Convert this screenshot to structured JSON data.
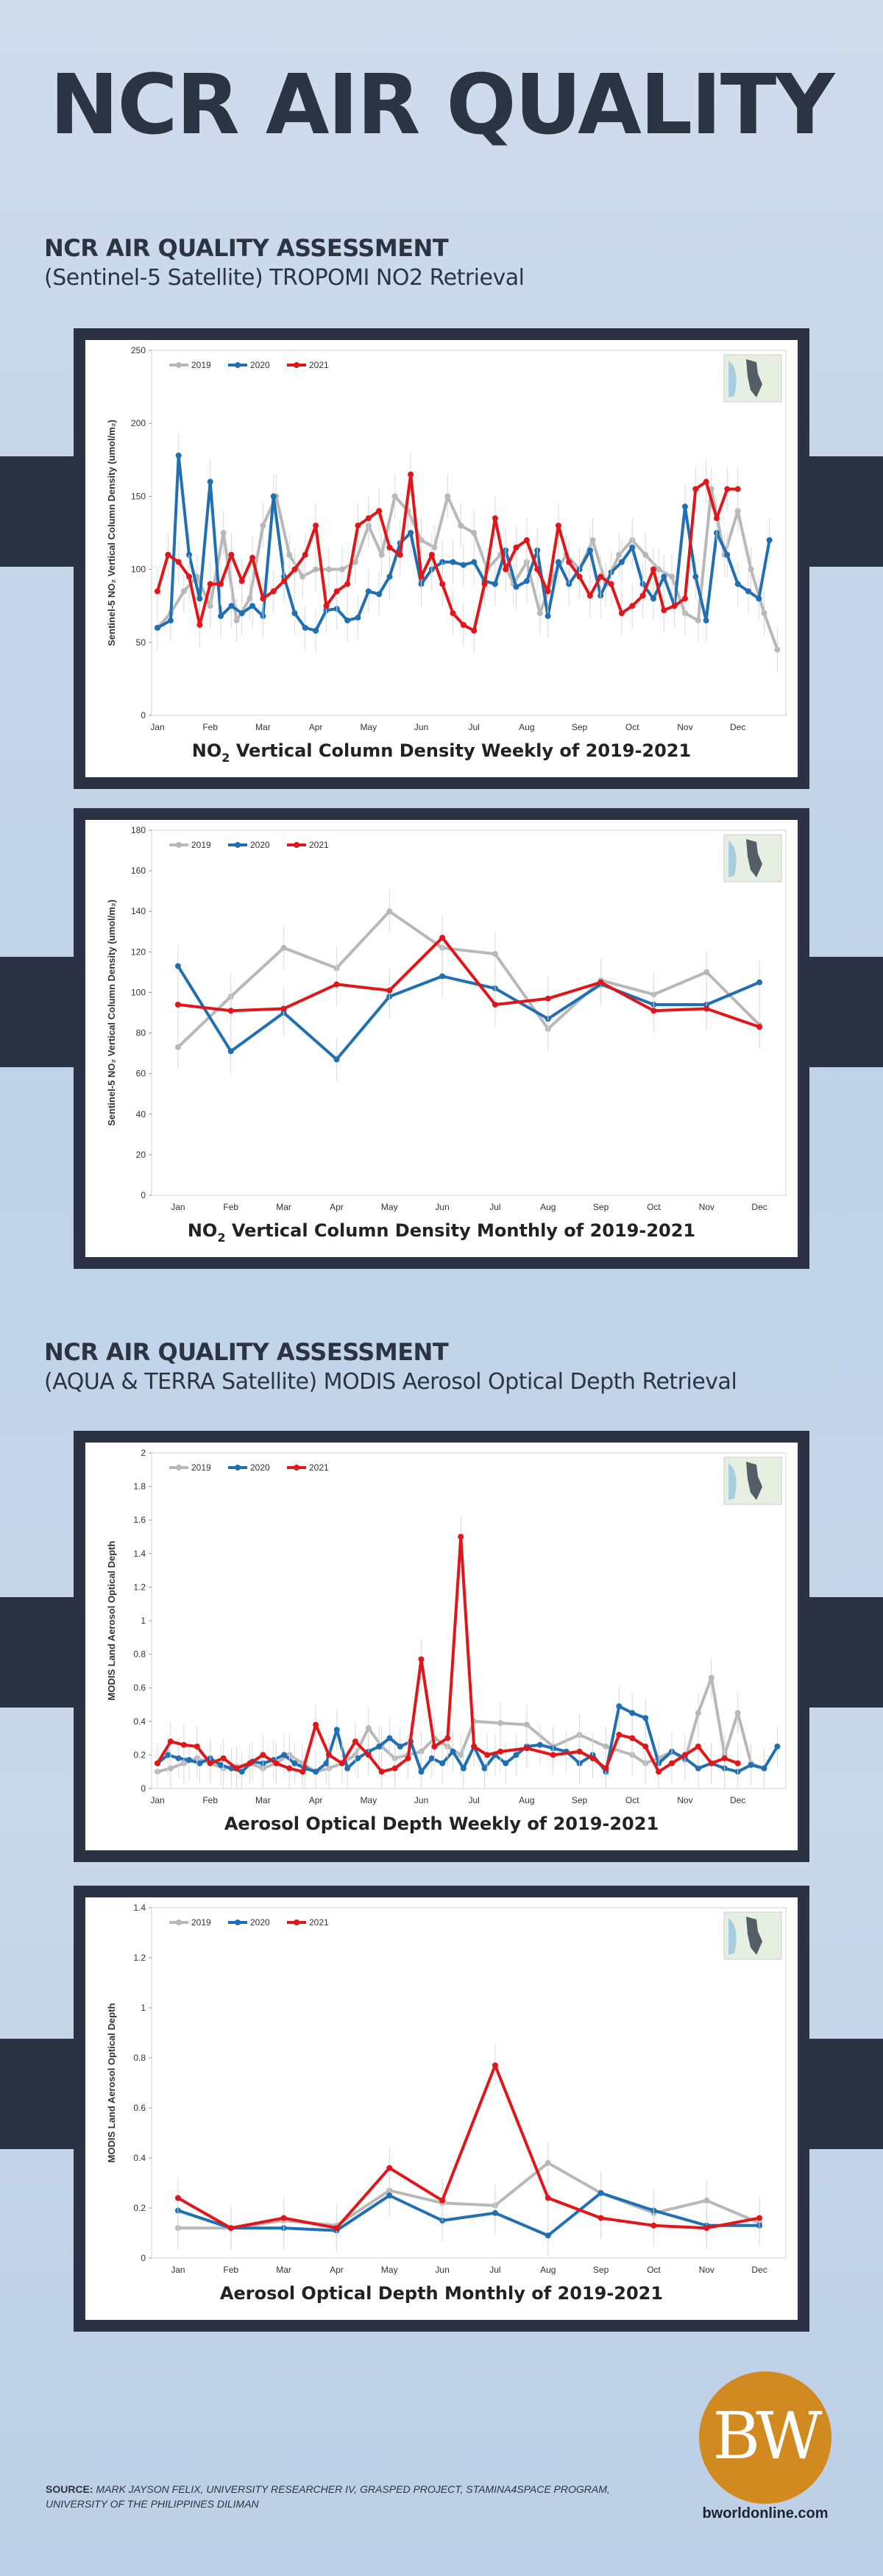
{
  "title": "NCR AIR QUALITY",
  "section1": {
    "heading": "NCR AIR QUALITY ASSESSMENT",
    "subheading": "(Sentinel-5 Satellite) TROPOMI NO2 Retrieval"
  },
  "section2": {
    "heading": "NCR AIR QUALITY ASSESSMENT",
    "subheading": "(AQUA & TERRA Satellite) MODIS Aerosol Optical Depth Retrieval"
  },
  "colors": {
    "2019": "#b8b8b8",
    "2020": "#1f6fb2",
    "2021": "#e0161b",
    "frame": "#2a3244",
    "brand": "#d08a1f"
  },
  "chart_data": [
    {
      "type": "line",
      "caption_prefix": "NO",
      "caption_sub": "2",
      "caption_suffix": " Vertical Column Density Weekly of 2019-2021",
      "ylabel": "Sentinel-5 NO₂ Vertical Column Density (umol/m₂)",
      "ylim": [
        0,
        250
      ],
      "yticks": [
        "0",
        "50",
        "100",
        "150",
        "200",
        "250"
      ],
      "month_labels": [
        "Jan",
        "Feb",
        "Mar",
        "Apr",
        "May",
        "Jun",
        "Jul",
        "Aug",
        "Sep",
        "Oct",
        "Nov",
        "Dec"
      ],
      "x_range": [
        0,
        11.8
      ],
      "grid": false,
      "legend": "top-left",
      "series": [
        {
          "name": "2019",
          "x": [
            0,
            0.25,
            0.5,
            0.75,
            1,
            1.25,
            1.5,
            1.75,
            2,
            2.25,
            2.5,
            2.75,
            3,
            3.25,
            3.5,
            3.75,
            4,
            4.25,
            4.5,
            4.75,
            5,
            5.25,
            5.5,
            5.75,
            6,
            6.25,
            6.5,
            6.75,
            7,
            7.25,
            7.5,
            7.75,
            8,
            8.25,
            8.5,
            8.75,
            9,
            9.25,
            9.5,
            9.75,
            10,
            10.25,
            10.5,
            10.75,
            11,
            11.25,
            11.5,
            11.75
          ],
          "values": [
            60,
            70,
            85,
            95,
            75,
            125,
            65,
            80,
            130,
            150,
            110,
            95,
            100,
            100,
            100,
            105,
            130,
            110,
            150,
            140,
            120,
            115,
            150,
            130,
            125,
            100,
            110,
            90,
            105,
            70,
            95,
            110,
            100,
            120,
            90,
            110,
            120,
            110,
            100,
            95,
            70,
            65,
            155,
            110,
            140,
            100,
            70,
            45
          ]
        },
        {
          "name": "2020",
          "x": [
            0,
            0.25,
            0.4,
            0.6,
            0.8,
            1,
            1.2,
            1.4,
            1.6,
            1.8,
            2,
            2.2,
            2.4,
            2.6,
            2.8,
            3,
            3.2,
            3.4,
            3.6,
            3.8,
            4,
            4.2,
            4.4,
            4.6,
            4.8,
            5,
            5.2,
            5.4,
            5.6,
            5.8,
            6,
            6.2,
            6.4,
            6.6,
            6.8,
            7,
            7.2,
            7.4,
            7.6,
            7.8,
            8,
            8.2,
            8.4,
            8.6,
            8.8,
            9,
            9.2,
            9.4,
            9.6,
            9.8,
            10,
            10.2,
            10.4,
            10.6,
            10.8,
            11,
            11.2,
            11.4,
            11.6
          ],
          "values": [
            60,
            65,
            178,
            110,
            80,
            160,
            68,
            75,
            70,
            75,
            68,
            150,
            95,
            70,
            60,
            58,
            72,
            73,
            65,
            67,
            85,
            83,
            95,
            118,
            125,
            90,
            100,
            105,
            105,
            103,
            105,
            92,
            90,
            113,
            88,
            92,
            113,
            68,
            105,
            90,
            100,
            113,
            82,
            98,
            105,
            115,
            90,
            80,
            95,
            75,
            143,
            95,
            65,
            125,
            110,
            90,
            85,
            80,
            120
          ]
        },
        {
          "name": "2021",
          "x": [
            0,
            0.2,
            0.4,
            0.6,
            0.8,
            1,
            1.2,
            1.4,
            1.6,
            1.8,
            2,
            2.2,
            2.4,
            2.6,
            2.8,
            3,
            3.2,
            3.4,
            3.6,
            3.8,
            4,
            4.2,
            4.4,
            4.6,
            4.8,
            5,
            5.2,
            5.4,
            5.6,
            5.8,
            6,
            6.2,
            6.4,
            6.6,
            6.8,
            7,
            7.2,
            7.4,
            7.6,
            7.8,
            8,
            8.2,
            8.4,
            8.6,
            8.8,
            9,
            9.2,
            9.4,
            9.6,
            9.8,
            10,
            10.2,
            10.4,
            10.6,
            10.8,
            11
          ],
          "values": [
            85,
            110,
            105,
            95,
            62,
            90,
            90,
            110,
            92,
            108,
            80,
            85,
            92,
            100,
            110,
            130,
            75,
            85,
            90,
            130,
            135,
            140,
            115,
            110,
            165,
            95,
            110,
            90,
            70,
            62,
            58,
            90,
            135,
            100,
            115,
            120,
            100,
            85,
            130,
            105,
            95,
            82,
            95,
            90,
            70,
            75,
            82,
            100,
            72,
            75,
            80,
            155,
            160,
            135,
            155,
            155
          ]
        }
      ]
    },
    {
      "type": "line",
      "caption_prefix": "NO",
      "caption_sub": "2",
      "caption_suffix": " Vertical Column Density Monthly of 2019-2021",
      "ylabel": "Sentinel-5 NO₂ Vertical Column Density (umol/m₂)",
      "ylim": [
        0,
        180
      ],
      "yticks": [
        "0",
        "20",
        "40",
        "60",
        "80",
        "100",
        "120",
        "140",
        "160",
        "180"
      ],
      "categories": [
        "Jan",
        "Feb",
        "Mar",
        "Apr",
        "May",
        "Jun",
        "Jul",
        "Aug",
        "Sep",
        "Oct",
        "Nov",
        "Dec"
      ],
      "grid": false,
      "legend": "top-left",
      "series": [
        {
          "name": "2019",
          "values": [
            73,
            98,
            122,
            112,
            140,
            122,
            119,
            82,
            106,
            99,
            110,
            84
          ]
        },
        {
          "name": "2020",
          "values": [
            113,
            71,
            90,
            67,
            98,
            108,
            102,
            87,
            104,
            94,
            94,
            105
          ]
        },
        {
          "name": "2021",
          "values": [
            94,
            91,
            92,
            104,
            101,
            127,
            94,
            97,
            105,
            91,
            92,
            83
          ]
        }
      ]
    },
    {
      "type": "line",
      "caption_prefix": "Aerosol Optical Depth Weekly of 2019-2021",
      "caption_sub": "",
      "caption_suffix": "",
      "ylabel": "MODIS Land Aerosol Optical Depth",
      "ylim": [
        0,
        2
      ],
      "yticks": [
        "0",
        "0.2",
        "0.4",
        "0.6",
        "0.8",
        "1",
        "1.2",
        "1.4",
        "1.6",
        "1.8",
        "2"
      ],
      "month_labels": [
        "Jan",
        "Feb",
        "Mar",
        "Apr",
        "May",
        "Jun",
        "Jul",
        "Aug",
        "Sep",
        "Oct",
        "Nov",
        "Dec"
      ],
      "x_range": [
        0,
        11.8
      ],
      "grid": false,
      "legend": "top-left",
      "series": [
        {
          "name": "2019",
          "x": [
            0,
            0.25,
            0.5,
            0.75,
            1,
            1.25,
            1.5,
            1.75,
            2,
            2.25,
            2.5,
            2.75,
            3,
            3.25,
            3.5,
            3.75,
            4,
            4.25,
            4.5,
            4.75,
            5,
            5.25,
            5.5,
            5.75,
            6,
            6.5,
            7,
            7.5,
            8,
            8.5,
            9,
            9.25,
            9.5,
            9.75,
            10,
            10.25,
            10.5,
            10.75,
            11,
            11.25,
            11.5
          ],
          "values": [
            0.1,
            0.12,
            0.15,
            0.18,
            0.15,
            0.12,
            0.13,
            0.15,
            0.12,
            0.15,
            0.2,
            0.15,
            0.1,
            0.12,
            0.15,
            0.2,
            0.36,
            0.25,
            0.18,
            0.2,
            0.22,
            0.3,
            0.25,
            0.2,
            0.4,
            0.39,
            0.38,
            0.25,
            0.32,
            0.25,
            0.2,
            0.15,
            0.18,
            0.22,
            0.17,
            0.45,
            0.66,
            0.2,
            0.45,
            0.15,
            0.12
          ]
        },
        {
          "name": "2020",
          "x": [
            0,
            0.2,
            0.4,
            0.6,
            0.8,
            1,
            1.2,
            1.4,
            1.6,
            1.8,
            2,
            2.2,
            2.4,
            2.6,
            2.8,
            3,
            3.2,
            3.4,
            3.6,
            3.8,
            4,
            4.2,
            4.4,
            4.6,
            4.8,
            5,
            5.2,
            5.4,
            5.6,
            5.8,
            6,
            6.2,
            6.4,
            6.6,
            6.8,
            7,
            7.25,
            7.5,
            7.75,
            8,
            8.25,
            8.5,
            8.75,
            9,
            9.25,
            9.5,
            9.75,
            10,
            10.25,
            10.5,
            10.75,
            11,
            11.25,
            11.5,
            11.75
          ],
          "values": [
            0.15,
            0.2,
            0.18,
            0.17,
            0.15,
            0.18,
            0.14,
            0.12,
            0.1,
            0.16,
            0.15,
            0.17,
            0.2,
            0.15,
            0.12,
            0.1,
            0.15,
            0.35,
            0.12,
            0.18,
            0.22,
            0.25,
            0.3,
            0.25,
            0.28,
            0.1,
            0.18,
            0.15,
            0.22,
            0.12,
            0.25,
            0.12,
            0.2,
            0.15,
            0.2,
            0.25,
            0.26,
            0.24,
            0.22,
            0.15,
            0.2,
            0.1,
            0.49,
            0.45,
            0.42,
            0.15,
            0.22,
            0.18,
            0.12,
            0.15,
            0.12,
            0.1,
            0.14,
            0.12,
            0.25
          ]
        },
        {
          "name": "2021",
          "x": [
            0,
            0.25,
            0.5,
            0.75,
            1,
            1.25,
            1.5,
            1.75,
            2,
            2.25,
            2.5,
            2.75,
            3,
            3.25,
            3.5,
            3.75,
            4,
            4.25,
            4.5,
            4.75,
            5,
            5.25,
            5.5,
            5.75,
            6,
            6.25,
            6.5,
            7,
            7.5,
            8,
            8.25,
            8.5,
            8.75,
            9,
            9.25,
            9.5,
            9.75,
            10,
            10.25,
            10.5,
            10.75,
            11
          ],
          "values": [
            0.15,
            0.28,
            0.26,
            0.25,
            0.15,
            0.18,
            0.12,
            0.15,
            0.2,
            0.15,
            0.12,
            0.1,
            0.38,
            0.2,
            0.15,
            0.28,
            0.2,
            0.1,
            0.12,
            0.18,
            0.77,
            0.25,
            0.3,
            1.5,
            0.25,
            0.2,
            0.22,
            0.24,
            0.2,
            0.22,
            0.18,
            0.12,
            0.32,
            0.3,
            0.25,
            0.1,
            0.15,
            0.2,
            0.25,
            0.15,
            0.18,
            0.15
          ]
        }
      ]
    },
    {
      "type": "line",
      "caption_prefix": "Aerosol Optical Depth Monthly of 2019-2021",
      "caption_sub": "",
      "caption_suffix": "",
      "ylabel": "MODIS Land Aerosol Optical Depth",
      "ylim": [
        0,
        1.4
      ],
      "yticks": [
        "0",
        "0.2",
        "0.4",
        "0.6",
        "0.8",
        "1",
        "1.2",
        "1.4"
      ],
      "categories": [
        "Jan",
        "Feb",
        "Mar",
        "Apr",
        "May",
        "Jun",
        "Jul",
        "Aug",
        "Sep",
        "Oct",
        "Nov",
        "Dec"
      ],
      "grid": false,
      "legend": "top-left",
      "series": [
        {
          "name": "2019",
          "values": [
            0.12,
            0.12,
            0.15,
            0.13,
            0.27,
            0.22,
            0.21,
            0.38,
            0.26,
            0.18,
            0.23,
            0.14
          ]
        },
        {
          "name": "2020",
          "values": [
            0.19,
            0.12,
            0.12,
            0.11,
            0.25,
            0.15,
            0.18,
            0.09,
            0.26,
            0.19,
            0.13,
            0.13
          ]
        },
        {
          "name": "2021",
          "values": [
            0.24,
            0.12,
            0.16,
            0.12,
            0.36,
            0.23,
            0.77,
            0.24,
            0.16,
            0.13,
            0.12,
            0.16
          ]
        }
      ]
    }
  ],
  "legend_labels": [
    "2019",
    "2020",
    "2021"
  ],
  "footer": {
    "source_label": "SOURCE:",
    "source_text": "MARK JAYSON FELIX, UNIVERSITY RESEARCHER IV, GRASPED PROJECT, STAMINA4SPACE PROGRAM, UNIVERSITY OF THE PHILIPPINES DILIMAN",
    "logo_text": "BW",
    "url": "bworldonline.com"
  }
}
